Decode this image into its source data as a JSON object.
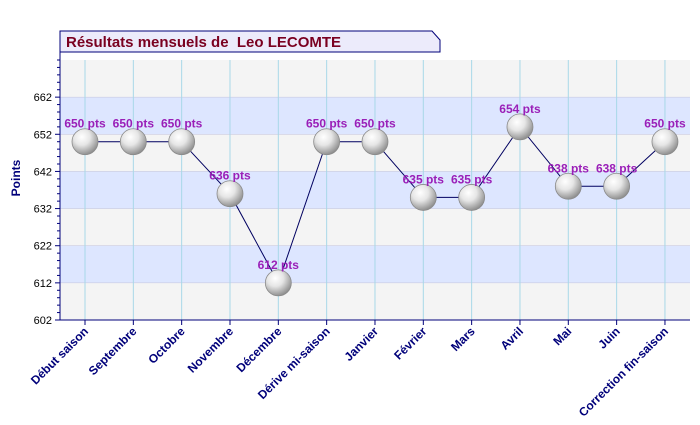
{
  "chart_data": {
    "type": "line",
    "title": "Résultats mensuels de  Leo LECOMTE",
    "ylabel": "Points",
    "xlabel": "",
    "ylim": [
      602,
      672
    ],
    "yticks": [
      602,
      612,
      622,
      632,
      642,
      652,
      662
    ],
    "grid": true,
    "categories": [
      "Début saison",
      "Septembre",
      "Octobre",
      "Novembre",
      "Décembre",
      "Dérive mi-saison",
      "Janvier",
      "Février",
      "Mars",
      "Avril",
      "Mai",
      "Juin",
      "Correction fin-saison"
    ],
    "series": [
      {
        "values": [
          650,
          650,
          650,
          636,
          612,
          650,
          650,
          635,
          635,
          654,
          638,
          638,
          650
        ],
        "labels": [
          "650 pts",
          "650 pts",
          "650 pts",
          "636 pts",
          "612 pts",
          "650 pts",
          "650 pts",
          "635 pts",
          "635 pts",
          "654 pts",
          "638 pts",
          "638 pts",
          "650 pts"
        ]
      }
    ],
    "colors": {
      "band": "#dde6ff",
      "plot_background": "#f4f4f4",
      "gridline": "#a8d8e8",
      "axis": "#00007a",
      "line": "#000060",
      "data_label": "#9a1fb8",
      "title_text": "#7a0020",
      "title_box": "#ecebfb",
      "title_box_border": "#00007a"
    }
  }
}
